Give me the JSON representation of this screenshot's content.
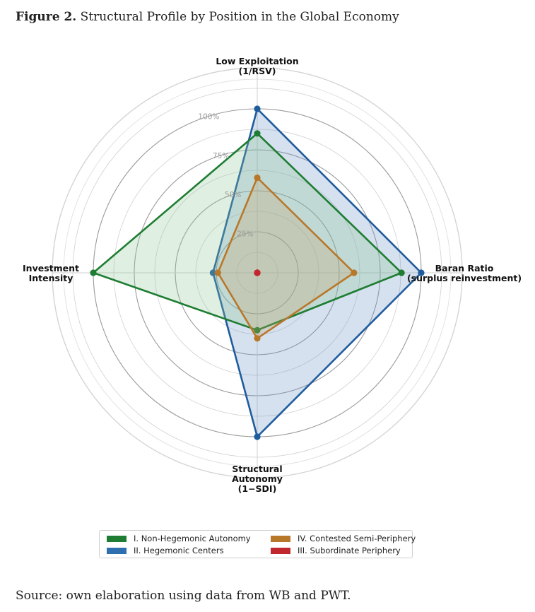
{
  "figure": {
    "label": "Figure 2.",
    "title": "Structural Profile by Position in the Global Economy",
    "source": "Source: own elaboration using data from WB and PWT."
  },
  "chart_data": {
    "type": "radar",
    "axes": [
      {
        "label_lines": [
          "Low Exploitation",
          "(1/RSV)"
        ]
      },
      {
        "label_lines": [
          "Baran Ratio",
          "(surplus reinvestment)"
        ]
      },
      {
        "label_lines": [
          "Structural",
          "Autonomy",
          "(1−SDI)"
        ]
      },
      {
        "label_lines": [
          "Investment",
          "Intensity"
        ]
      }
    ],
    "r_ticks": [
      25,
      50,
      75,
      100
    ],
    "r_tick_labels": [
      "25%",
      "50%",
      "75%",
      "100%"
    ],
    "r_max": 125,
    "grid": true,
    "series": [
      {
        "name": "II. Hegemonic Centers",
        "color": "#1f5c9e",
        "fill": "#6b93c6",
        "values": [
          100,
          100,
          100,
          27
        ]
      },
      {
        "name": "I. Non-Hegemonic Autonomy",
        "color": "#1e7d32",
        "fill": "#8cc492",
        "values": [
          85,
          88,
          35,
          100
        ]
      },
      {
        "name": "IV. Contested Semi-Periphery",
        "color": "#b8782a",
        "fill": "#c9a06a",
        "values": [
          58,
          59,
          40,
          24
        ]
      },
      {
        "name": "III. Subordinate Periphery",
        "color": "#c0282d",
        "fill": "#c0282d",
        "values": [
          0,
          0,
          0,
          0
        ]
      }
    ],
    "legend": {
      "placement": "bottom",
      "items": [
        {
          "name": "I. Non-Hegemonic Autonomy",
          "color": "#1e7d32"
        },
        {
          "name": "IV. Contested Semi-Periphery",
          "color": "#b8782a"
        },
        {
          "name": "II. Hegemonic Centers",
          "color": "#2e6fb0"
        },
        {
          "name": "III. Subordinate Periphery",
          "color": "#c0282d"
        }
      ]
    }
  }
}
